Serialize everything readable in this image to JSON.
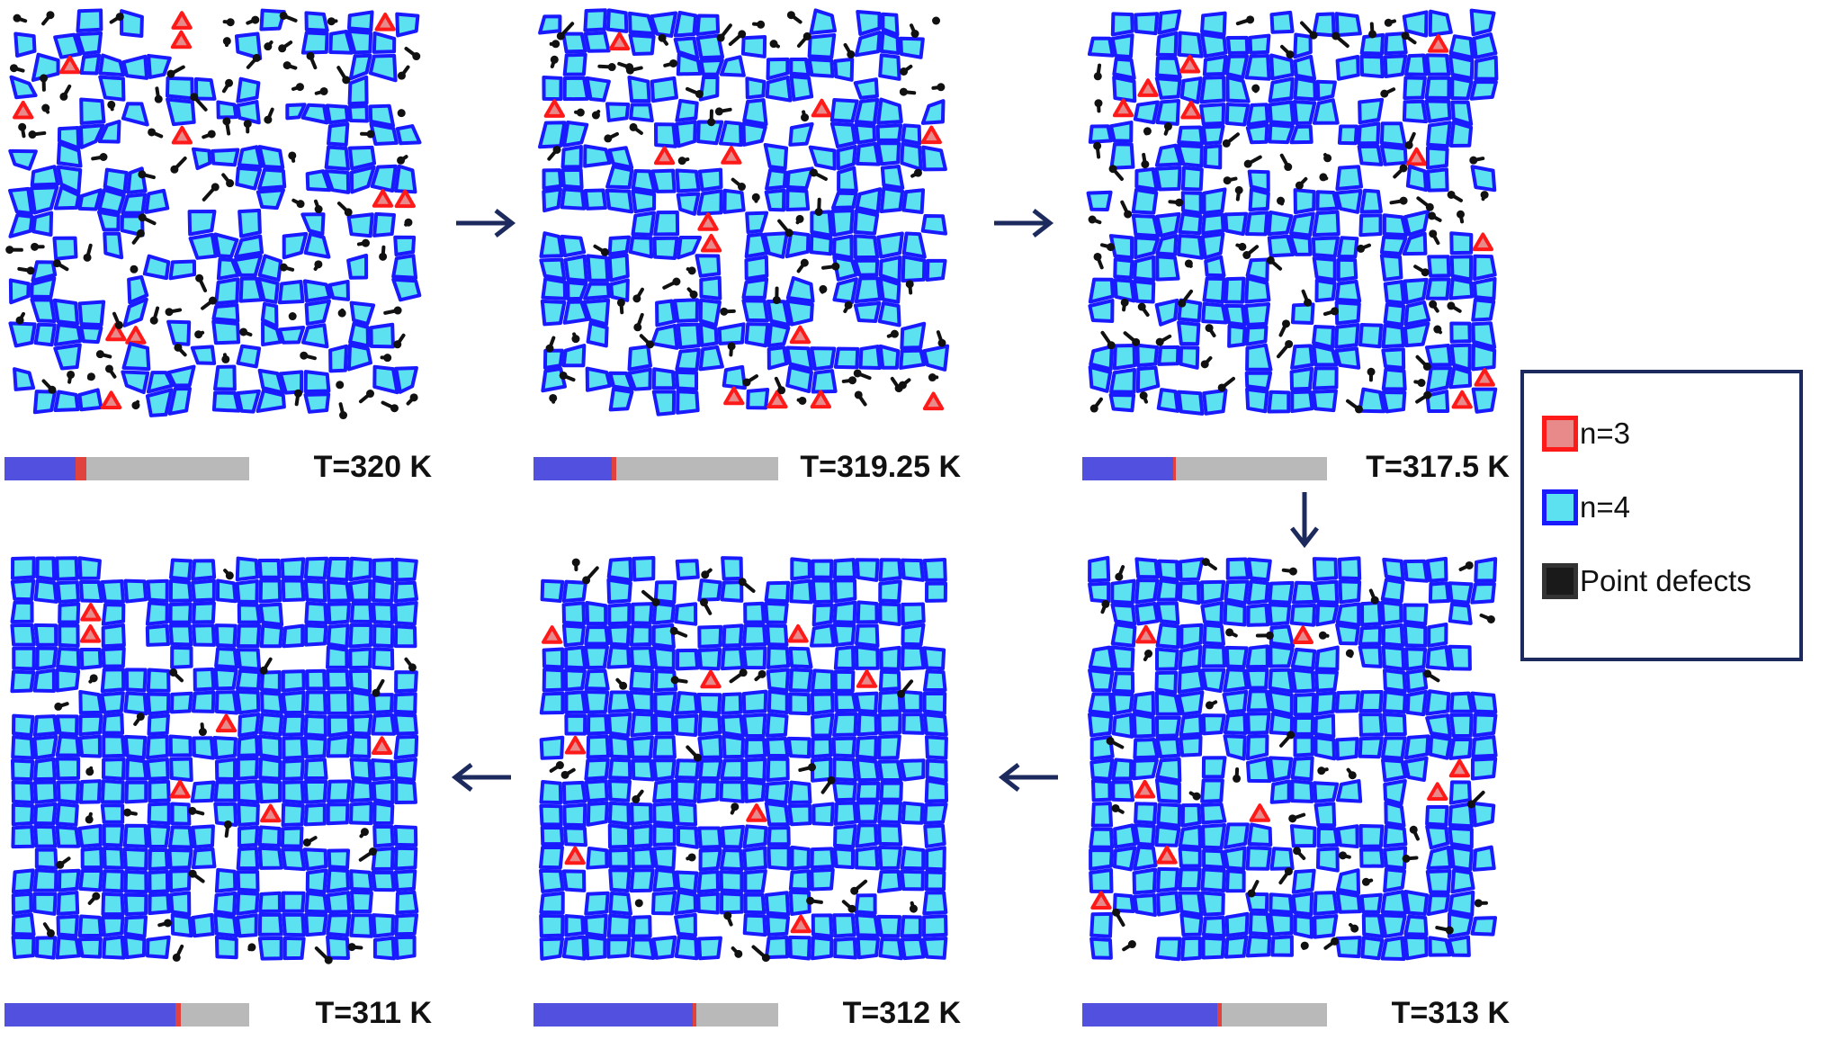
{
  "colors": {
    "n3_fill": "#e88a8a",
    "n3_edge": "#ff1a1a",
    "n4_fill": "#5ce1f0",
    "n4_edge": "#1a1aff",
    "defect": "#111111",
    "bar_blue": "#5250de",
    "bar_red": "#e0433e",
    "bar_gray": "#b9b9b9",
    "arrow": "#1c2a5e",
    "legend_border": "#1c2a5e"
  },
  "panels": [
    {
      "temperature_label": "T=320 K",
      "n4_fraction": 0.29,
      "n3_fraction": 0.045,
      "order": 0.45,
      "seed": 11
    },
    {
      "temperature_label": "T=319.25 K",
      "n4_fraction": 0.32,
      "n3_fraction": 0.02,
      "order": 0.58,
      "seed": 23
    },
    {
      "temperature_label": "T=317.5 K",
      "n4_fraction": 0.37,
      "n3_fraction": 0.012,
      "order": 0.66,
      "seed": 37
    },
    {
      "temperature_label": "T=313 K",
      "n4_fraction": 0.55,
      "n3_fraction": 0.02,
      "order": 0.78,
      "seed": 41
    },
    {
      "temperature_label": "T=312 K",
      "n4_fraction": 0.65,
      "n3_fraction": 0.015,
      "order": 0.88,
      "seed": 53
    },
    {
      "temperature_label": "T=311 K",
      "n4_fraction": 0.7,
      "n3_fraction": 0.02,
      "order": 0.92,
      "seed": 67
    }
  ],
  "legend": {
    "items": [
      {
        "label": "n=3",
        "icon": "n3-swatch"
      },
      {
        "label": "n=4",
        "icon": "n4-swatch"
      },
      {
        "label": "Point defects",
        "icon": "defect-swatch"
      }
    ]
  },
  "arrows": [
    "right",
    "right",
    "down",
    "left",
    "left"
  ]
}
